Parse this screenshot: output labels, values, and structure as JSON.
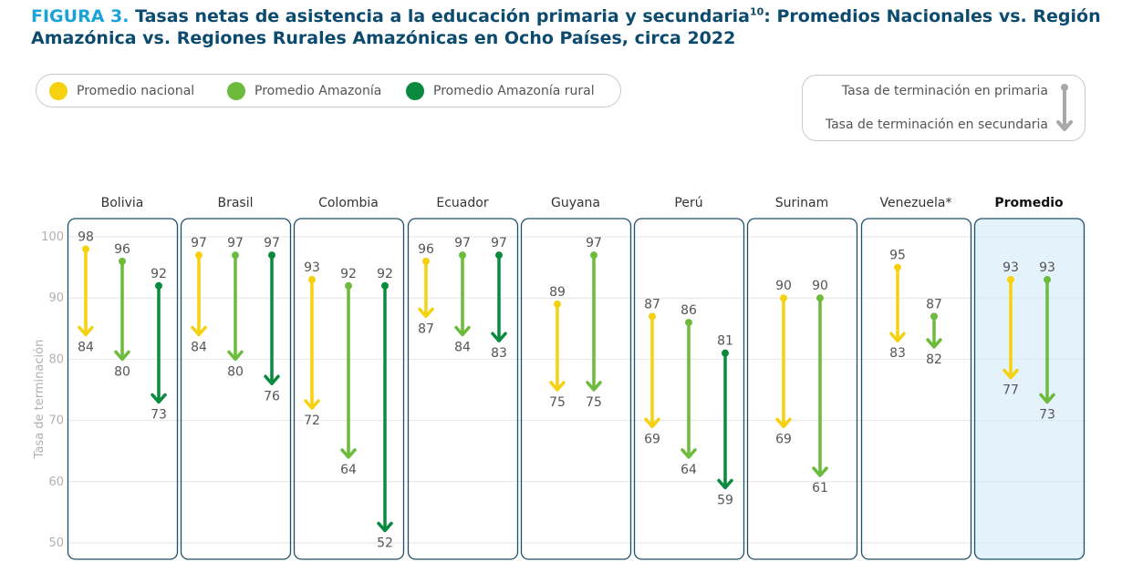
{
  "figure": {
    "label": "FIGURA 3.",
    "title_part1": " Tasas netas de asistencia a la educación primaria y secundaria",
    "title_sup": "10",
    "title_part2": ": Promedios Nacionales vs. Región Amazónica vs. Regiones Rurales Amazónicas en Ocho Países, circa 2022"
  },
  "legend": {
    "items": [
      {
        "label": "Promedio nacional",
        "color": "#f5d10f"
      },
      {
        "label": "Promedio Amazonía",
        "color": "#6dbb3c"
      },
      {
        "label": "Promedio Amazonía rural",
        "color": "#0a8a3f"
      }
    ],
    "arrow_legend": {
      "primary_label": "Tasa de terminación en primaria",
      "secondary_label": "Tasa de terminación en secundaria",
      "arrow_color": "#a8a8a8"
    }
  },
  "chart_data": {
    "type": "range-arrow",
    "ylabel": "Tasa de terminación",
    "ylim": [
      50,
      100
    ],
    "yticks": [
      50,
      60,
      70,
      80,
      90,
      100
    ],
    "series_order": [
      "Promedio nacional",
      "Promedio Amazonía",
      "Promedio Amazonía rural"
    ],
    "colors": {
      "Promedio nacional": "#f5d10f",
      "Promedio Amazonía": "#6dbb3c",
      "Promedio Amazonía rural": "#0a8a3f"
    },
    "groups": [
      {
        "name": "Bolivia",
        "values": [
          {
            "series": "Promedio nacional",
            "primary": 98,
            "secondary": 84
          },
          {
            "series": "Promedio Amazonía",
            "primary": 96,
            "secondary": 80
          },
          {
            "series": "Promedio Amazonía rural",
            "primary": 92,
            "secondary": 73
          }
        ]
      },
      {
        "name": "Brasil",
        "values": [
          {
            "series": "Promedio nacional",
            "primary": 97,
            "secondary": 84
          },
          {
            "series": "Promedio Amazonía",
            "primary": 97,
            "secondary": 80
          },
          {
            "series": "Promedio Amazonía rural",
            "primary": 97,
            "secondary": 76
          }
        ]
      },
      {
        "name": "Colombia",
        "values": [
          {
            "series": "Promedio nacional",
            "primary": 93,
            "secondary": 72
          },
          {
            "series": "Promedio Amazonía",
            "primary": 92,
            "secondary": 64
          },
          {
            "series": "Promedio Amazonía rural",
            "primary": 92,
            "secondary": 52
          }
        ]
      },
      {
        "name": "Ecuador",
        "values": [
          {
            "series": "Promedio nacional",
            "primary": 96,
            "secondary": 87
          },
          {
            "series": "Promedio Amazonía",
            "primary": 97,
            "secondary": 84
          },
          {
            "series": "Promedio Amazonía rural",
            "primary": 97,
            "secondary": 83
          }
        ]
      },
      {
        "name": "Guyana",
        "values": [
          {
            "series": "Promedio nacional",
            "primary": 89,
            "secondary": 75
          },
          {
            "series": "Promedio Amazonía",
            "primary": 97,
            "secondary": 75
          }
        ]
      },
      {
        "name": "Perú",
        "values": [
          {
            "series": "Promedio nacional",
            "primary": 87,
            "secondary": 69
          },
          {
            "series": "Promedio Amazonía",
            "primary": 86,
            "secondary": 64
          },
          {
            "series": "Promedio Amazonía rural",
            "primary": 81,
            "secondary": 59
          }
        ]
      },
      {
        "name": "Surinam",
        "values": [
          {
            "series": "Promedio nacional",
            "primary": 90,
            "secondary": 69
          },
          {
            "series": "Promedio Amazonía",
            "primary": 90,
            "secondary": 61
          }
        ]
      },
      {
        "name": "Venezuela*",
        "values": [
          {
            "series": "Promedio nacional",
            "primary": 95,
            "secondary": 83
          },
          {
            "series": "Promedio Amazonía",
            "primary": 87,
            "secondary": 82
          }
        ]
      },
      {
        "name": "Promedio",
        "highlight": true,
        "values": [
          {
            "series": "Promedio nacional",
            "primary": 93,
            "secondary": 77
          },
          {
            "series": "Promedio Amazonía",
            "primary": 93,
            "secondary": 73
          }
        ]
      }
    ]
  }
}
